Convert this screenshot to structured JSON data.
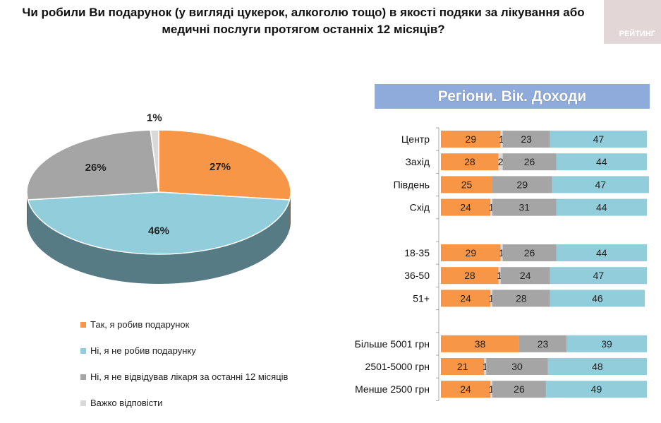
{
  "title_line1": "Чи робили Ви подарунок (у вигляді цукерок, алкоголю тощо) в якості подяки за лікування або",
  "title_line2": "медичні послуги протягом останніх 12 місяців?",
  "logo_text": "РЕЙТИНГ",
  "banner": "Регіони. Вік. Доходи",
  "chart_data": [
    {
      "type": "pie",
      "slices": [
        {
          "label": "Так, я робив подарунок",
          "value": 27,
          "display": "27%",
          "color": "#f79646"
        },
        {
          "label": "Ні, я не робив подарунку",
          "value": 46,
          "display": "46%",
          "color": "#92cddc"
        },
        {
          "label": "Ні, я не відвідував лікаря за останні 12 місяців",
          "value": 26,
          "display": "26%",
          "color": "#a5a5a5"
        },
        {
          "label": "Важко відповісти",
          "value": 1,
          "display": "1%",
          "color": "#d9d9d9"
        }
      ],
      "legend_position": "bottom-left"
    },
    {
      "type": "bar",
      "stacked": true,
      "orientation": "horizontal",
      "categories": [
        "Центр",
        "Захід",
        "Південь",
        "Схід",
        "",
        "18-35",
        "36-50",
        "51+",
        "",
        "Більше 5001 грн",
        "2501-5000 грн",
        "Менше 2500 грн"
      ],
      "series": [
        {
          "name": "Так, я робив подарунок",
          "color": "#f79646",
          "values": [
            29,
            28,
            25,
            24,
            null,
            29,
            28,
            24,
            null,
            38,
            21,
            24
          ]
        },
        {
          "name": "Важко відповісти",
          "color": "#d9d9d9",
          "values": [
            1,
            2,
            0,
            1,
            null,
            1,
            1,
            1,
            null,
            0,
            1,
            1
          ]
        },
        {
          "name": "Ні, я не відвідував лікаря за останні 12 місяців",
          "color": "#a5a5a5",
          "values": [
            23,
            26,
            29,
            31,
            null,
            26,
            24,
            28,
            null,
            23,
            30,
            26
          ]
        },
        {
          "name": "Ні, я не робив подарунку",
          "color": "#92cddc",
          "values": [
            47,
            44,
            47,
            44,
            null,
            44,
            47,
            46,
            null,
            39,
            48,
            49
          ]
        }
      ],
      "xlim": [
        0,
        100
      ]
    }
  ]
}
